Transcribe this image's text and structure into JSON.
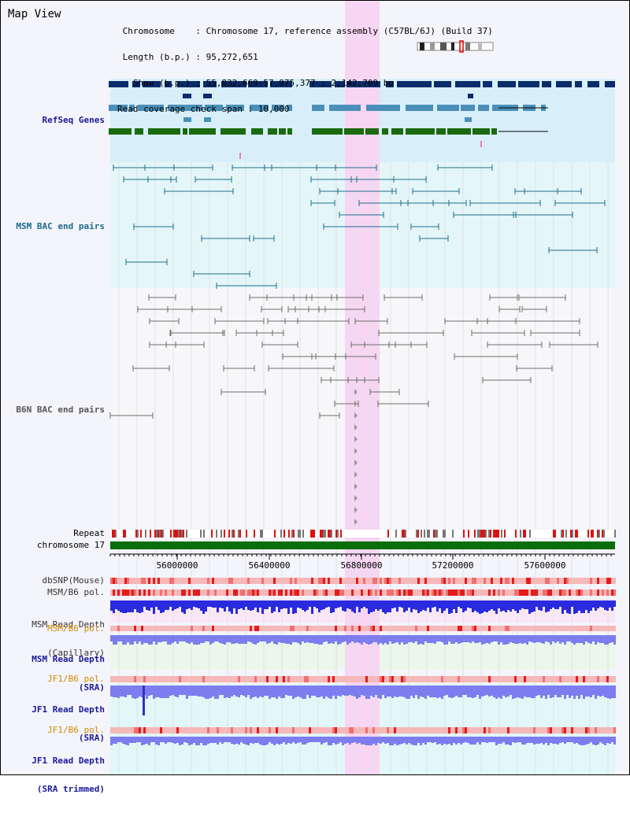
{
  "view_title": "Map View",
  "header": {
    "line1": " Chromosome    : Chromosome 17, reference assembly (C57BL/6J) (Build 37)",
    "line2": " Length (b.p.) : 95,272,651",
    "line3": "   Show (b.p.) : 55,832,669-57,975,377 : 2,142,709 bp",
    "line4": "Read coverage check span : 10,000"
  },
  "tracks": {
    "refseq": "RefSeq Genes",
    "msm_bac": "MSM BAC end pairs",
    "b6n_bac": "B6N BAC end pairs",
    "repeat": "Repeat",
    "chromosome": "chromosome 17",
    "dbsnp": "dbSNP(Mouse)",
    "msm_b6_pol": "MSM/B6 pol.",
    "msm_depth_cap_1": "MSM Read Depth",
    "msm_depth_cap_2": "(Capillary)",
    "msm_b6_pol2": "MSM/B6 pol.",
    "msm_depth_sra_1": "MSM Read Depth",
    "msm_depth_sra_2": "(SRA)",
    "jf1_b6_pol": "JF1/B6 pol.",
    "jf1_depth_sra_1": "JF1 Read Depth",
    "jf1_depth_sra_2": "(SRA)",
    "jf1_b6_pol2": "JF1/B6 pol.",
    "jf1_depth_trim_1": "JF1 Read Depth",
    "jf1_depth_trim_2": "(SRA trimmed)"
  },
  "axis": {
    "ticks": [
      "56000000",
      "56400000",
      "56800000",
      "57200000",
      "57600000"
    ]
  },
  "colors": {
    "highlight": "#f6d6f2",
    "refseq_bg": "#d8effa",
    "msm_bg": "#e4f6f8",
    "navy": "#0b2c6a",
    "steel": "#4a8fb8",
    "green": "#1a6a10",
    "teal": "#1f6f8b",
    "gray": "#6c6c6c",
    "chrom": "#0a6e0a",
    "depth_blue": "#2a2adf",
    "depth_light": "#7d7def"
  }
}
